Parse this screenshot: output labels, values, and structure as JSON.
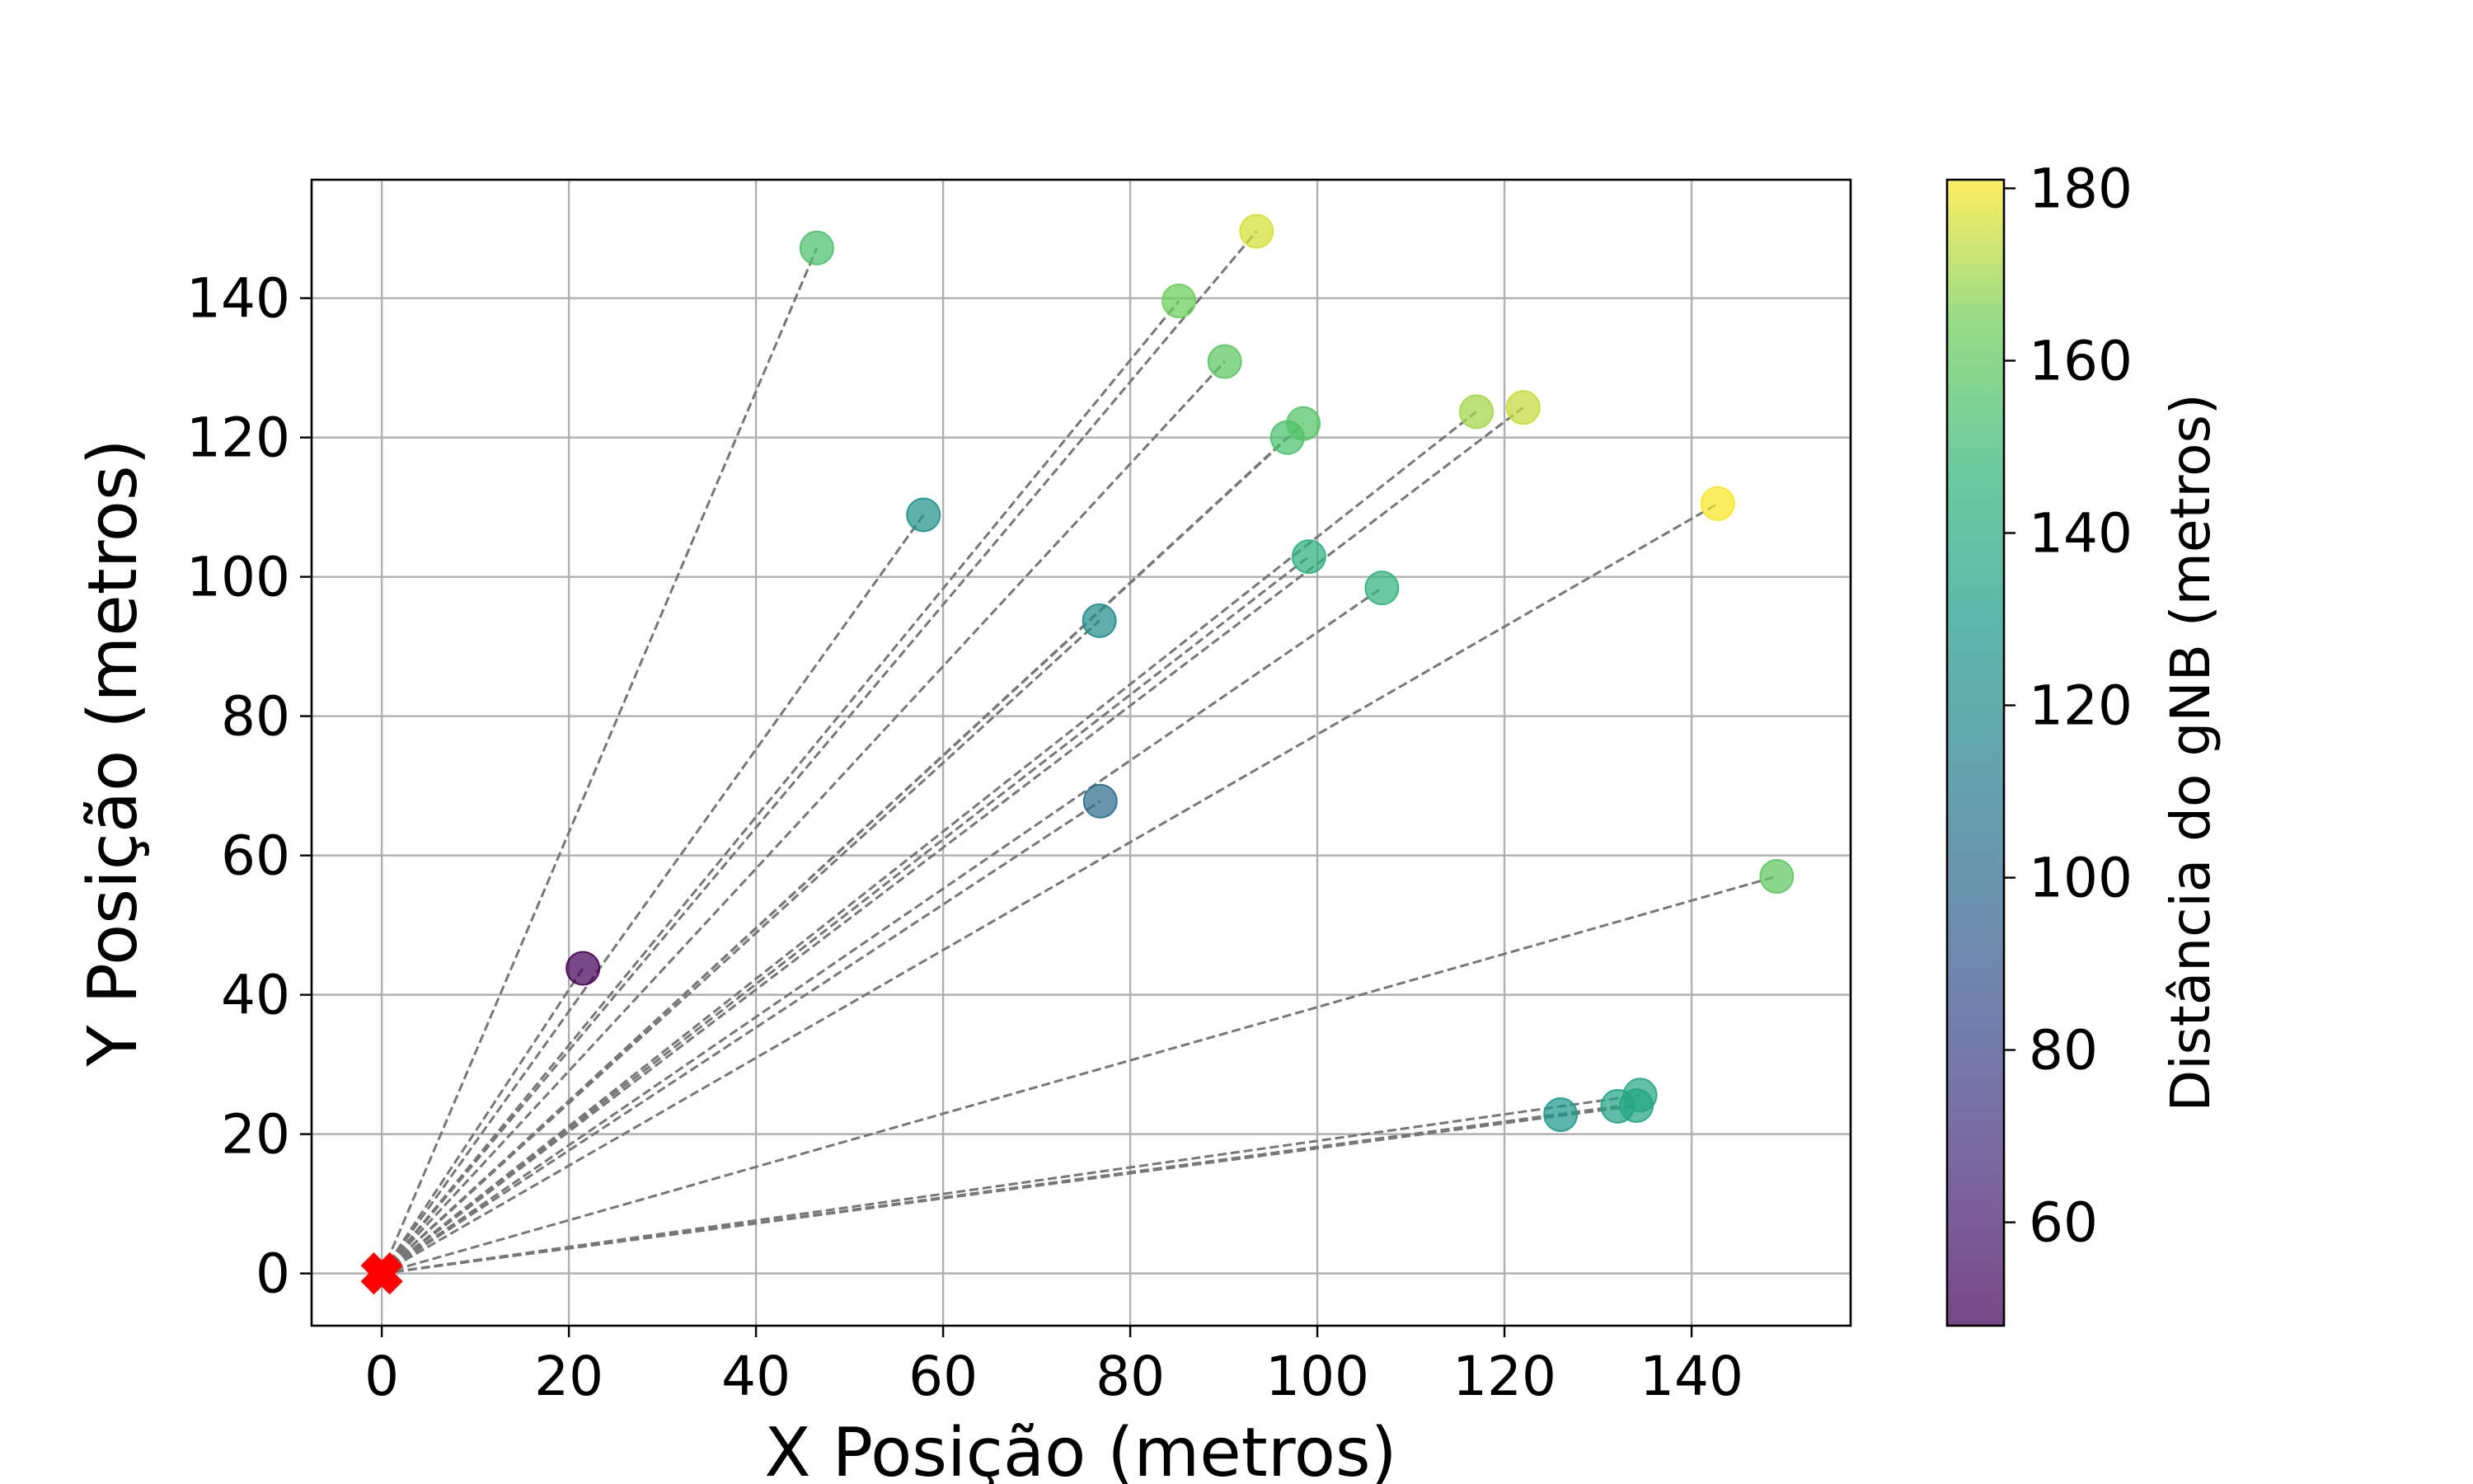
{
  "chart_data": {
    "type": "scatter",
    "title": "",
    "xlabel": "X Posição (metros)",
    "ylabel": "Y Posição (metros)",
    "xlim": [
      -7.5,
      157
    ],
    "ylim": [
      -7.5,
      157
    ],
    "xticks": [
      0,
      20,
      40,
      60,
      80,
      100,
      120,
      140
    ],
    "yticks": [
      0,
      20,
      40,
      60,
      80,
      100,
      120,
      140
    ],
    "grid": true,
    "gnb": {
      "x": 0,
      "y": 0,
      "marker": "X",
      "color": "#ff0000"
    },
    "line_color": "#777777",
    "line_style": "dashed",
    "colormap": "viridis",
    "colorbar": {
      "label": "Distância do gNB (metros)",
      "min": 48,
      "max": 181,
      "ticks": [
        60,
        80,
        100,
        120,
        140,
        160,
        180
      ]
    },
    "points": [
      {
        "x": 21.5,
        "y": 43.8,
        "distance": 48.8
      },
      {
        "x": 46.5,
        "y": 147.2,
        "distance": 154.4
      },
      {
        "x": 57.9,
        "y": 108.9,
        "distance": 123.3
      },
      {
        "x": 76.7,
        "y": 93.7,
        "distance": 121.1
      },
      {
        "x": 76.8,
        "y": 67.8,
        "distance": 102.4
      },
      {
        "x": 85.2,
        "y": 139.6,
        "distance": 163.5
      },
      {
        "x": 90.1,
        "y": 130.9,
        "distance": 158.9
      },
      {
        "x": 93.5,
        "y": 149.6,
        "distance": 176.4
      },
      {
        "x": 96.8,
        "y": 120.0,
        "distance": 154.2
      },
      {
        "x": 98.5,
        "y": 122.0,
        "distance": 156.8
      },
      {
        "x": 99.1,
        "y": 102.9,
        "distance": 142.9
      },
      {
        "x": 106.9,
        "y": 98.4,
        "distance": 145.3
      },
      {
        "x": 117.0,
        "y": 123.7,
        "distance": 170.3
      },
      {
        "x": 122.0,
        "y": 124.3,
        "distance": 174.2
      },
      {
        "x": 126.0,
        "y": 22.8,
        "distance": 128.0
      },
      {
        "x": 132.1,
        "y": 24.0,
        "distance": 134.3
      },
      {
        "x": 134.1,
        "y": 24.1,
        "distance": 136.3
      },
      {
        "x": 134.5,
        "y": 25.6,
        "distance": 136.9
      },
      {
        "x": 142.8,
        "y": 110.5,
        "distance": 180.6
      },
      {
        "x": 149.1,
        "y": 57.0,
        "distance": 159.6
      }
    ]
  }
}
